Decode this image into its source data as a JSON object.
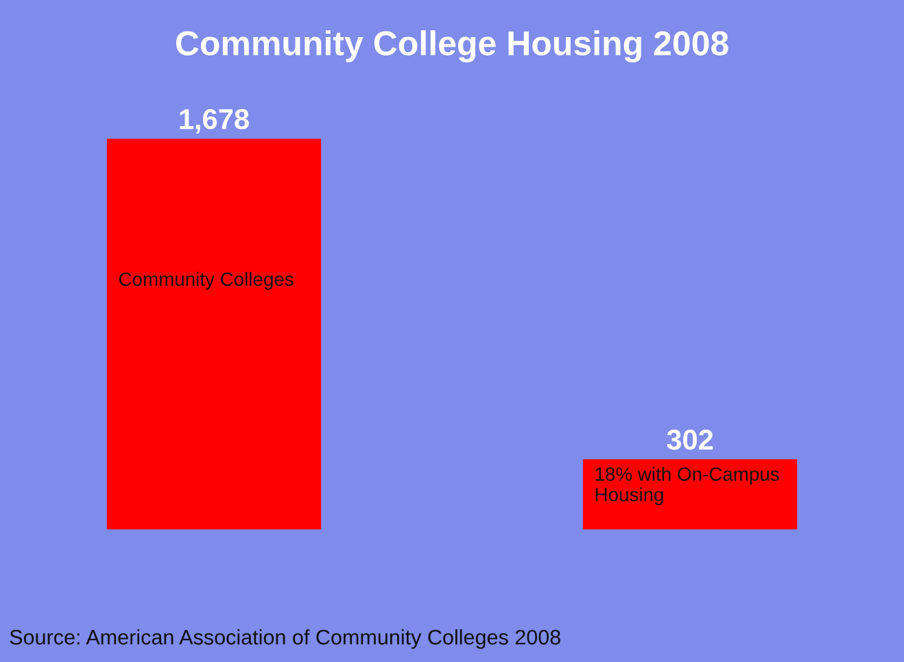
{
  "chart_data": {
    "type": "bar",
    "title": "Community College Housing 2008",
    "categories": [
      "Community Colleges",
      "18% with On-Campus Housing"
    ],
    "values": [
      1678,
      302
    ],
    "color": "#ff0000",
    "value_labels": [
      "1,678",
      "302"
    ],
    "annotations": [
      "Source: American Association of Community Colleges 2008"
    ]
  }
}
